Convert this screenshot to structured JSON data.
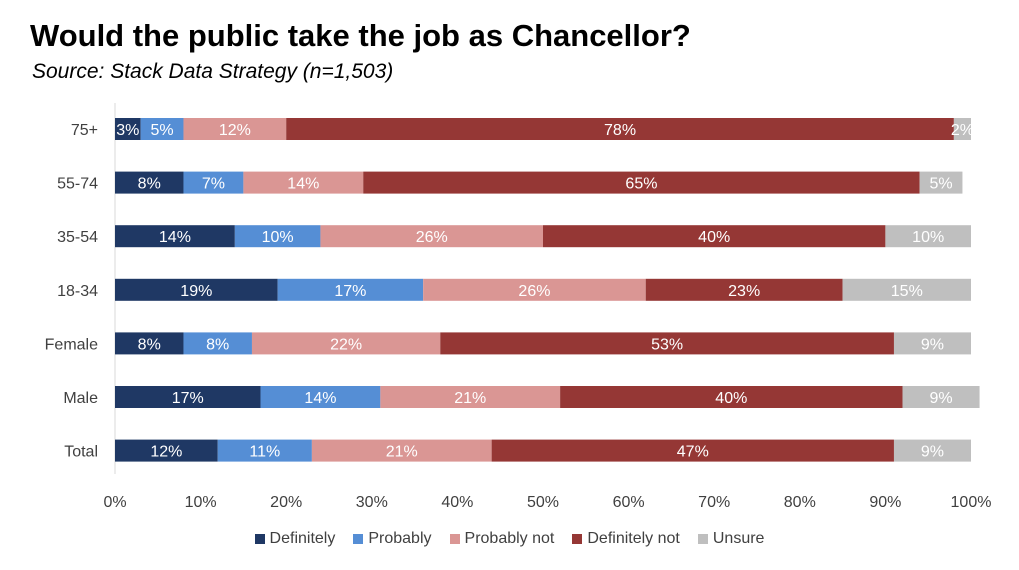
{
  "chart_data": {
    "type": "bar",
    "orientation": "horizontal",
    "stacked": "percent",
    "title": "Would the public take the job as Chancellor?",
    "subtitle": "Source: Stack Data Strategy (n=1,503)",
    "categories": [
      "75+",
      "55-74",
      "35-54",
      "18-34",
      "Female",
      "Male",
      "Total"
    ],
    "xlim": [
      0,
      100
    ],
    "xticks": [
      "0%",
      "10%",
      "20%",
      "30%",
      "40%",
      "50%",
      "60%",
      "70%",
      "80%",
      "90%",
      "100%"
    ],
    "legend_position": "bottom",
    "series": [
      {
        "name": "Definitely",
        "color": "#1f3864",
        "label_color": "#ffffff",
        "values": [
          3,
          8,
          14,
          19,
          8,
          17,
          12
        ],
        "labels": [
          "3%",
          "8%",
          "14%",
          "19%",
          "8%",
          "17%",
          "12%"
        ]
      },
      {
        "name": "Probably",
        "color": "#558ed5",
        "label_color": "#ffffff",
        "values": [
          5,
          7,
          10,
          17,
          8,
          14,
          11
        ],
        "labels": [
          "5%",
          "7%",
          "10%",
          "17%",
          "8%",
          "14%",
          "11%"
        ]
      },
      {
        "name": "Probably not",
        "color": "#da9694",
        "label_color": "#ffffff",
        "values": [
          12,
          14,
          26,
          26,
          22,
          21,
          21
        ],
        "labels": [
          "12%",
          "14%",
          "26%",
          "26%",
          "22%",
          "21%",
          "21%"
        ]
      },
      {
        "name": "Definitely not",
        "color": "#953735",
        "label_color": "#ffffff",
        "values": [
          78,
          65,
          40,
          23,
          53,
          40,
          47
        ],
        "labels": [
          "78%",
          "65%",
          "40%",
          "23%",
          "53%",
          "40%",
          "47%"
        ]
      },
      {
        "name": "Unsure",
        "color": "#bfbfbf",
        "label_color": "#ffffff",
        "values": [
          2,
          5,
          10,
          15,
          9,
          9,
          9
        ],
        "labels": [
          "2%",
          "5%",
          "10%",
          "15%",
          "9%",
          "9%",
          "9%"
        ]
      }
    ]
  }
}
